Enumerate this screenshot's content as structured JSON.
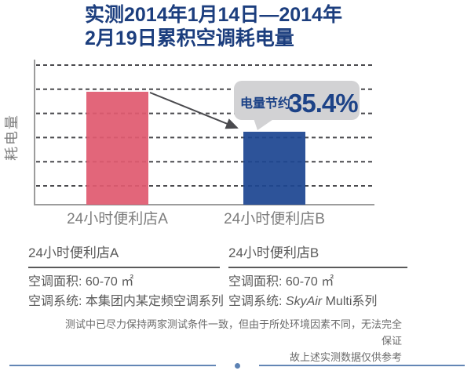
{
  "title": {
    "line1": "实测2014年1月14日—2014年",
    "line2": "2月19日累积空调耗电量"
  },
  "chart_data": {
    "type": "bar",
    "title": "实测2014年1月14日—2014年2月19日累积空调耗电量",
    "ylabel": "耗电量",
    "xlabel": "",
    "categories": [
      "24小时便利店A",
      "24小时便利店B"
    ],
    "values": [
      100,
      64.6
    ],
    "units": "relative power consumption (store A = 100)",
    "colors": [
      "#e05a70",
      "#1d4691"
    ],
    "annotation": {
      "label": "电量节约",
      "value": "35.4%",
      "bubble_color": "#d2d2d4",
      "text_color": "#1c4287"
    },
    "grid": "horizontal dashed, 6 lines, no numeric tick labels",
    "legend": "none",
    "axis_color": "#9c9c9c"
  },
  "store_a": {
    "name": "24小时便利店A",
    "area": "空调面积: 60-70 ㎡",
    "system": "空调系统: 本集团内某定频空调系列"
  },
  "store_b": {
    "name": "24小时便利店B",
    "area": "空调面积: 60-70 ㎡",
    "system_label": "空调系统: ",
    "system_brand": "SkyAir",
    "system_rest": " Multi系列"
  },
  "footnote": {
    "line1": "测试中已尽力保持两家测试条件一致，但由于所处环境因素不同，无法完全保证",
    "line2": "故上述实测数据仅供参考"
  },
  "colors": {
    "title_navy": "#1c3e7e",
    "bar_pink": "#e05a70",
    "bar_blue": "#1d4691",
    "divider_blue": "#6386b5",
    "gridline": "#4a4a4e"
  }
}
